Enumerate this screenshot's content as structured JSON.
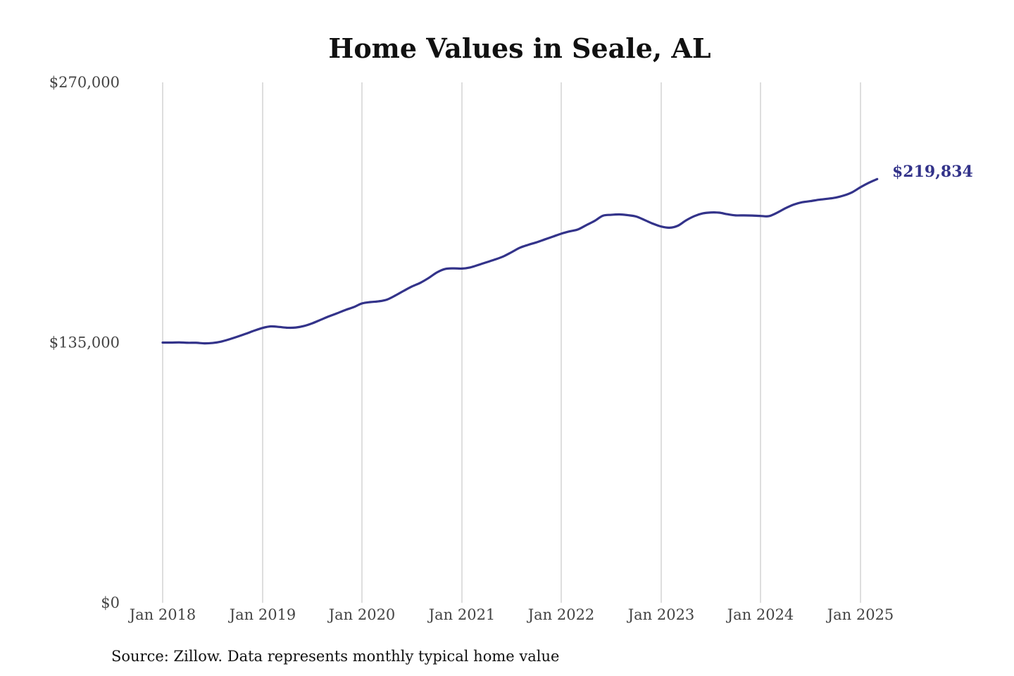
{
  "chart_data": {
    "type": "line",
    "title": "Home Values in Seale, AL",
    "source": "Source: Zillow. Data represents monthly typical home value",
    "xlabel": "",
    "ylabel": "",
    "ylim": [
      0,
      270000
    ],
    "y_ticks": [
      0,
      135000,
      270000
    ],
    "y_tick_labels": [
      "$0",
      "$135,000",
      "$270,000"
    ],
    "x_ticks": [
      "2018-01",
      "2019-01",
      "2020-01",
      "2021-01",
      "2022-01",
      "2023-01",
      "2024-01",
      "2025-01"
    ],
    "x_tick_labels": [
      "Jan 2018",
      "Jan 2019",
      "Jan 2020",
      "Jan 2021",
      "Jan 2022",
      "Jan 2023",
      "Jan 2024",
      "Jan 2025"
    ],
    "grid": "vertical",
    "legend": "none",
    "end_label": "$219,834",
    "color": "#33338a",
    "series": [
      {
        "x": [
          "2018-01",
          "2018-02",
          "2018-03",
          "2018-04",
          "2018-05",
          "2018-06",
          "2018-07",
          "2018-08",
          "2018-09",
          "2018-10",
          "2018-11",
          "2018-12",
          "2019-01",
          "2019-02",
          "2019-03",
          "2019-04",
          "2019-05",
          "2019-06",
          "2019-07",
          "2019-08",
          "2019-09",
          "2019-10",
          "2019-11",
          "2019-12",
          "2020-01",
          "2020-02",
          "2020-03",
          "2020-04",
          "2020-05",
          "2020-06",
          "2020-07",
          "2020-08",
          "2020-09",
          "2020-10",
          "2020-11",
          "2020-12",
          "2021-01",
          "2021-02",
          "2021-03",
          "2021-04",
          "2021-05",
          "2021-06",
          "2021-07",
          "2021-08",
          "2021-09",
          "2021-10",
          "2021-11",
          "2021-12",
          "2022-01",
          "2022-02",
          "2022-03",
          "2022-04",
          "2022-05",
          "2022-06",
          "2022-07",
          "2022-08",
          "2022-09",
          "2022-10",
          "2022-11",
          "2022-12",
          "2023-01",
          "2023-02",
          "2023-03",
          "2023-04",
          "2023-05",
          "2023-06",
          "2023-07",
          "2023-08",
          "2023-09",
          "2023-10",
          "2023-11",
          "2023-12",
          "2024-01",
          "2024-02",
          "2024-03",
          "2024-04",
          "2024-05",
          "2024-06",
          "2024-07",
          "2024-08",
          "2024-09",
          "2024-10",
          "2024-11",
          "2024-12",
          "2025-01",
          "2025-02",
          "2025-03"
        ],
        "values": [
          135000,
          135000,
          135100,
          134900,
          134900,
          134600,
          134800,
          135500,
          136700,
          138100,
          139600,
          141200,
          142600,
          143400,
          143100,
          142700,
          142800,
          143600,
          145000,
          146800,
          148600,
          150200,
          151900,
          153400,
          155300,
          156000,
          156400,
          157300,
          159400,
          161800,
          164100,
          166000,
          168500,
          171400,
          173200,
          173500,
          173400,
          174000,
          175300,
          176700,
          178100,
          179700,
          181900,
          184200,
          185700,
          187000,
          188500,
          190000,
          191500,
          192700,
          193700,
          195900,
          198100,
          200800,
          201300,
          201500,
          201100,
          200400,
          198600,
          196700,
          195200,
          194600,
          195600,
          198400,
          200600,
          202000,
          202500,
          202400,
          201600,
          201000,
          201000,
          200900,
          200700,
          200600,
          202400,
          204700,
          206600,
          207800,
          208400,
          209100,
          209600,
          210200,
          211300,
          213000,
          215600,
          217900,
          219834
        ]
      }
    ]
  }
}
